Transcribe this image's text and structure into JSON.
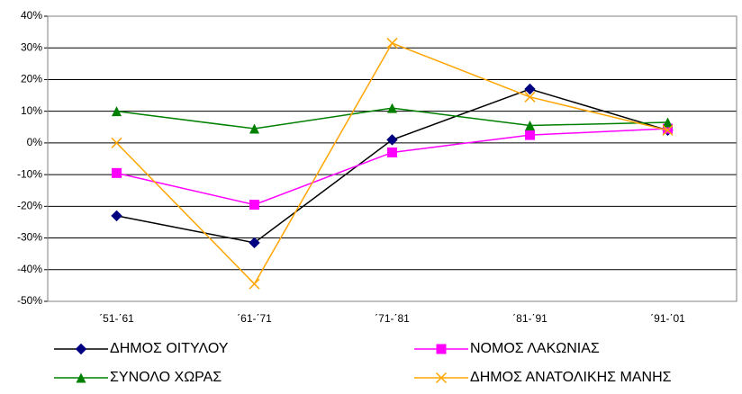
{
  "chart_data": {
    "type": "line",
    "categories": [
      "΄51-΄61",
      "΄61-΄71",
      "΄71-΄81",
      "΄81-΄91",
      "΄91-΄01"
    ],
    "series": [
      {
        "name": "ΔΗΜΟΣ ΟΙΤΥΛΟΥ",
        "color": "#000080",
        "line_color": "#000000",
        "marker": "diamond",
        "values": [
          -23,
          -31.5,
          1,
          17,
          4
        ]
      },
      {
        "name": "ΝΟΜΟΣ ΛΑΚΩΝΙΑΣ",
        "color": "#ff00ff",
        "line_color": "#ff00ff",
        "marker": "square",
        "values": [
          -9.5,
          -19.5,
          -3,
          2.5,
          4.5
        ]
      },
      {
        "name": "ΣΥΝΟΛΟ ΧΩΡΑΣ",
        "color": "#008000",
        "line_color": "#008000",
        "marker": "triangle",
        "values": [
          10,
          4.5,
          11,
          5.5,
          6.5
        ]
      },
      {
        "name": "ΔΗΜΟΣ ΑΝΑΤΟΛΙΚΗΣ ΜΑΝΗΣ",
        "color": "#ffa500",
        "line_color": "#ffa500",
        "marker": "x",
        "values": [
          0,
          -44.5,
          31.5,
          14.5,
          4
        ]
      }
    ],
    "ylim": [
      -50,
      40
    ],
    "yticks": [
      {
        "value": -50,
        "label": "-50%"
      },
      {
        "value": -40,
        "label": "-40%"
      },
      {
        "value": -30,
        "label": "-30%"
      },
      {
        "value": -20,
        "label": "-20%"
      },
      {
        "value": -10,
        "label": "-10%"
      },
      {
        "value": 0,
        "label": "0%"
      },
      {
        "value": 10,
        "label": "10%"
      },
      {
        "value": 20,
        "label": "20%"
      },
      {
        "value": 30,
        "label": "30%"
      },
      {
        "value": 40,
        "label": "40%"
      }
    ],
    "grid": true,
    "legend": "bottom"
  }
}
